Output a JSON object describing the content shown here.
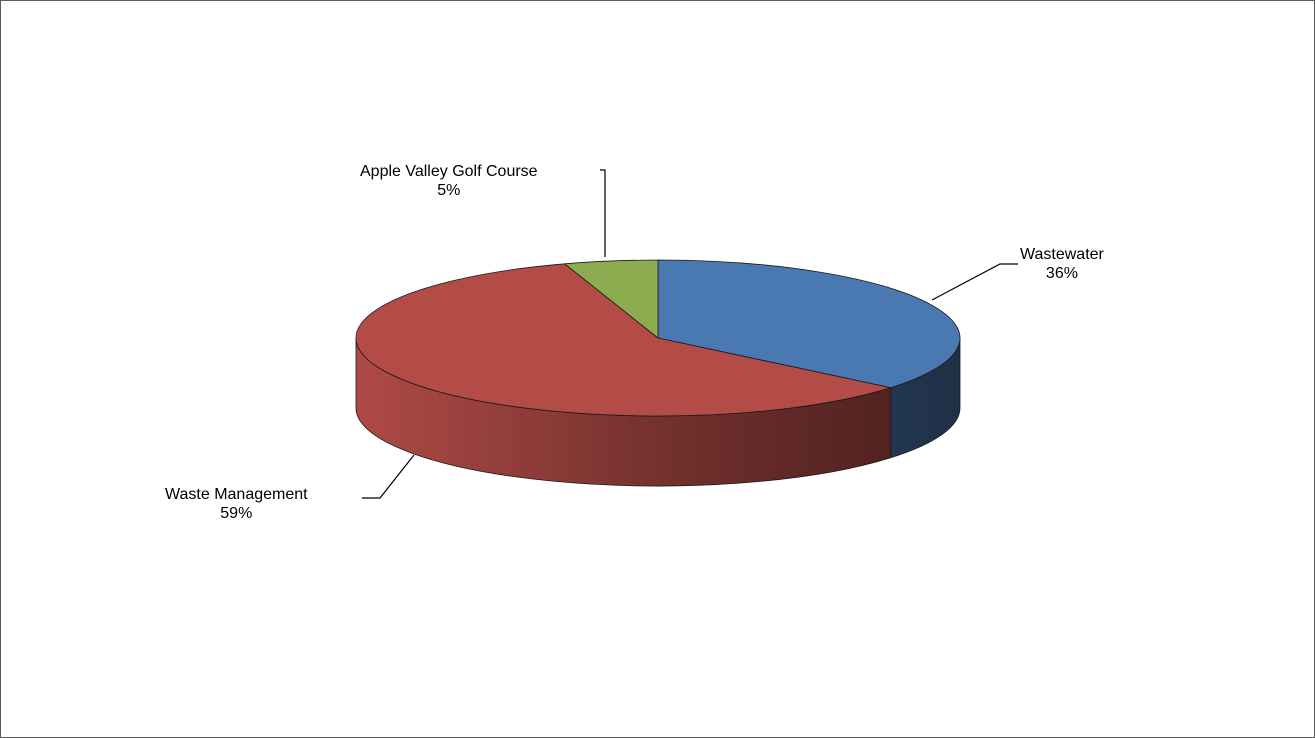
{
  "chart_data": {
    "type": "pie",
    "style": "3d",
    "slices": [
      {
        "label": "Wastewater",
        "value": 36,
        "pct_label": "36%",
        "color": "#4a78b0"
      },
      {
        "label": "Waste Management",
        "value": 59,
        "pct_label": "59%",
        "color": "#b34b47"
      },
      {
        "label": "Apple Valley Golf Course",
        "value": 5,
        "pct_label": "5%",
        "color": "#8cad4f"
      }
    ],
    "legend": "none",
    "data_labels": "outside-with-leader-lines"
  }
}
